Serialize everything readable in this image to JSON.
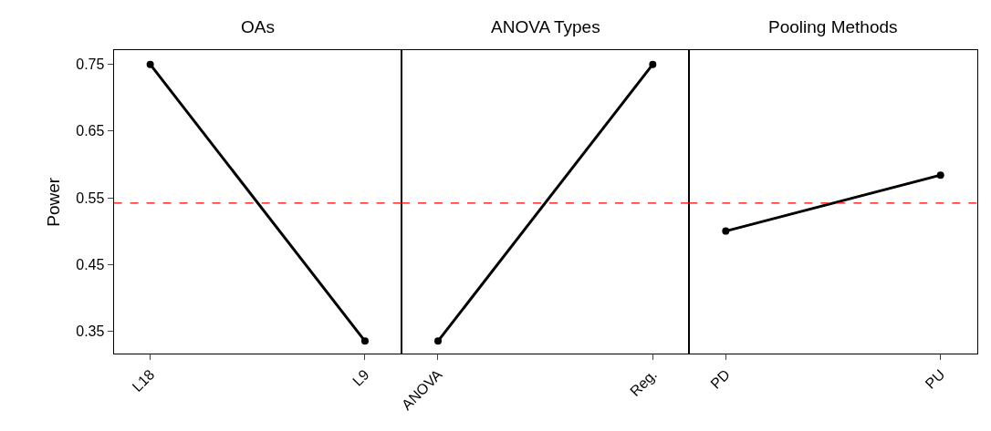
{
  "chart_data": [
    {
      "type": "line",
      "title": "OAs",
      "ylabel": "Power",
      "categories": [
        "L18",
        "L9"
      ],
      "series": [
        {
          "color": "#000000",
          "values": [
            0.75,
            0.335
          ]
        }
      ],
      "ylim": [
        0.316,
        0.771
      ],
      "yticks": [
        0.35,
        0.45,
        0.55,
        0.65,
        0.75
      ],
      "marker": "circle",
      "line_style": "solid",
      "ref_lines": [
        {
          "axis": "y",
          "value": 0.542,
          "color": "#ff0000",
          "line_style": "dashed"
        }
      ]
    },
    {
      "type": "line",
      "title": "ANOVA Types",
      "categories": [
        "ANOVA",
        "Reg."
      ],
      "series": [
        {
          "color": "#000000",
          "values": [
            0.335,
            0.75
          ]
        }
      ],
      "ylim": [
        0.316,
        0.771
      ],
      "yticks": [
        0.35,
        0.45,
        0.55,
        0.65,
        0.75
      ],
      "tick_labels": "x",
      "marker": "circle",
      "line_style": "solid",
      "ref_lines": [
        {
          "axis": "y",
          "value": 0.542,
          "color": "#ff0000",
          "line_style": "dashed"
        }
      ]
    },
    {
      "type": "line",
      "title": "Pooling Methods",
      "categories": [
        "PD",
        "PU"
      ],
      "series": [
        {
          "color": "#000000",
          "values": [
            0.5,
            0.584
          ]
        }
      ],
      "ylim": [
        0.316,
        0.771
      ],
      "yticks": [
        0.35,
        0.45,
        0.55,
        0.65,
        0.75
      ],
      "tick_labels": "x",
      "marker": "circle",
      "line_style": "solid",
      "ref_lines": [
        {
          "axis": "y",
          "value": 0.542,
          "color": "#ff0000",
          "line_style": "dashed"
        }
      ]
    }
  ]
}
